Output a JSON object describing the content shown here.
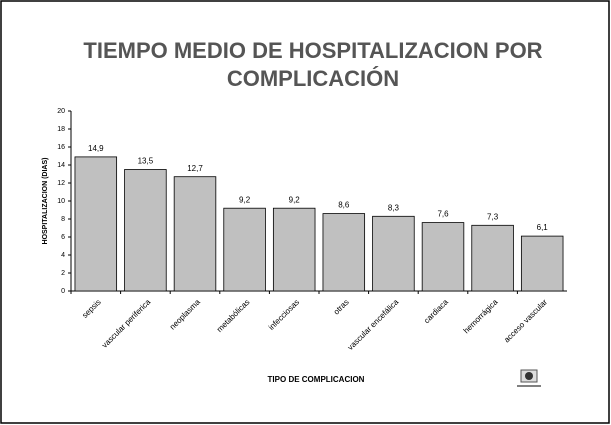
{
  "chart_data": {
    "type": "bar",
    "title": [
      "TIEMPO MEDIO DE HOSPITALIZACION POR",
      "COMPLICACIÓN"
    ],
    "xlabel": "TIPO DE COMPLICACION",
    "ylabel": "HOSPITALIZACION (DIAS)",
    "categories": [
      "sepsis",
      "vascular periferica",
      "neoplasma",
      "metabólicas",
      "infecciosas",
      "otras",
      "vascular encefálica",
      "cardiaca",
      "hemorrágica",
      "acceso vascular"
    ],
    "values": [
      14.9,
      13.5,
      12.7,
      9.2,
      9.2,
      8.6,
      8.3,
      7.6,
      7.3,
      6.1
    ],
    "value_labels": [
      "14,9",
      "13,5",
      "12,7",
      "9,2",
      "9,2",
      "8,6",
      "8,3",
      "7,6",
      "7,3",
      "6,1"
    ],
    "color": "#c0c0c0",
    "ylim": [
      0,
      20
    ],
    "yticks": [
      0,
      2,
      4,
      6,
      8,
      10,
      12,
      14,
      16,
      18,
      20
    ]
  }
}
